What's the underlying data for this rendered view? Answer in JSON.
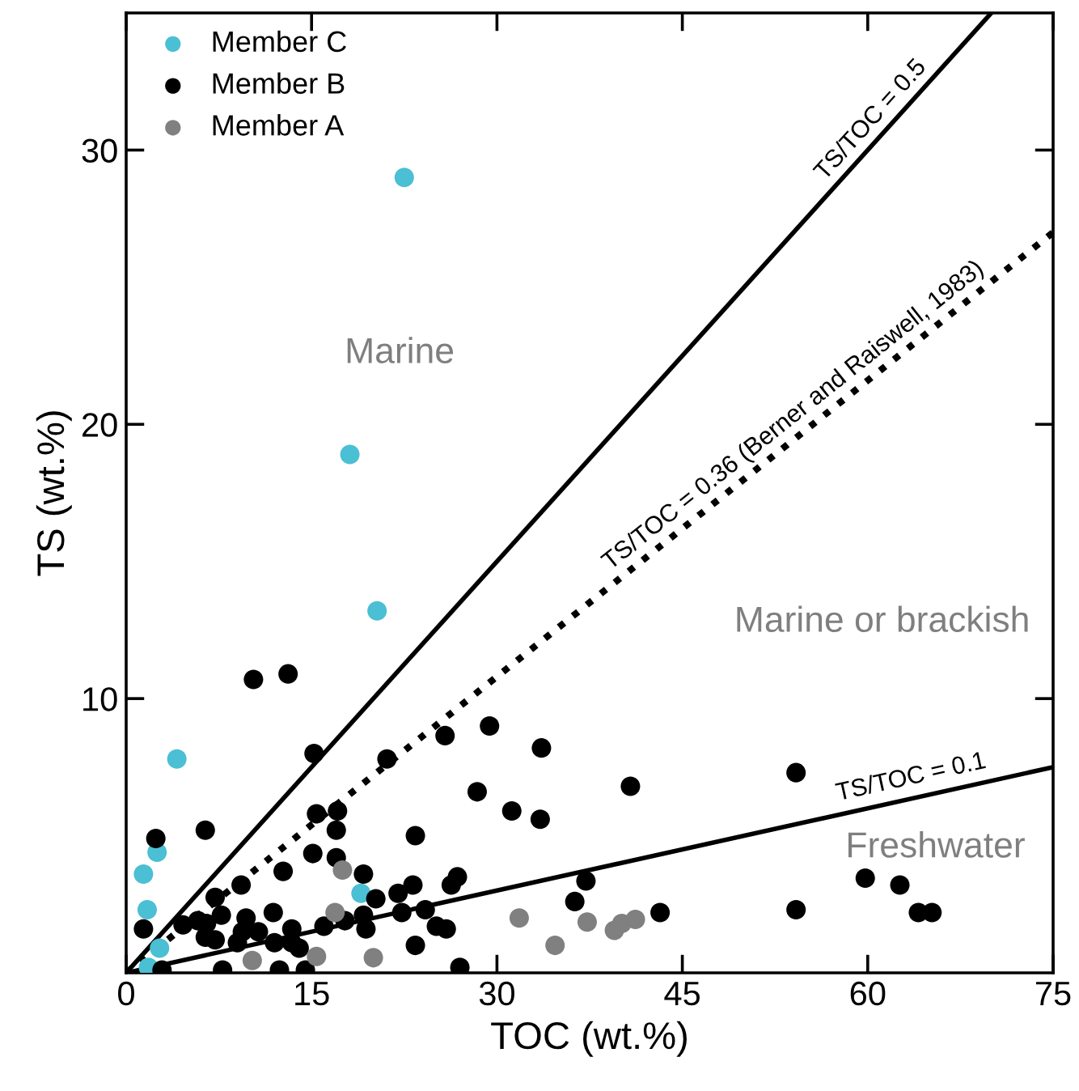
{
  "chart_data": {
    "type": "scatter",
    "xlabel": "TOC (wt.%)",
    "ylabel": "TS (wt.%)",
    "xlim": [
      0,
      75
    ],
    "ylim": [
      0,
      35
    ],
    "xticks": [
      0,
      15,
      30,
      45,
      60,
      75
    ],
    "yticks": [
      10,
      20,
      30
    ],
    "grid": false,
    "legend": "top left",
    "series": [
      {
        "name": "Member C",
        "color": "#4bbfd3",
        "marker": "circle",
        "x": [
          22.5,
          18.1,
          20.3,
          4.1,
          2.5,
          1.4,
          1.7,
          19.0,
          1.8,
          2.7
        ],
        "values": [
          29.0,
          18.9,
          13.2,
          7.8,
          4.4,
          3.6,
          2.3,
          2.9,
          0.2,
          0.9
        ]
      },
      {
        "name": "Member B",
        "color": "#000000",
        "marker": "circle",
        "x": [
          10.3,
          13.1,
          15.2,
          21.1,
          2.4,
          6.4,
          15.4,
          17.1,
          17.0,
          23.4,
          15.1,
          17.0,
          12.7,
          9.3,
          19.2,
          22.0,
          23.2,
          20.2,
          7.2,
          1.4,
          4.6,
          5.8,
          6.5,
          7.7,
          6.4,
          7.2,
          9.7,
          10.7,
          9.4,
          11.9,
          13.4,
          13.4,
          12.0,
          16.0,
          17.7,
          19.2,
          19.4,
          22.3,
          24.2,
          25.1,
          23.4,
          2.9,
          7.8,
          12.4,
          14.5,
          14.0,
          9.0,
          25.8,
          29.4,
          33.6,
          28.4,
          31.2,
          33.5,
          40.8,
          26.8,
          26.3,
          25.9,
          37.2,
          36.3,
          43.2,
          27.0,
          54.2,
          54.2,
          59.8,
          62.6,
          64.1,
          65.2
        ],
        "values": [
          10.7,
          10.9,
          8.0,
          7.8,
          4.9,
          5.2,
          5.8,
          5.9,
          5.2,
          5.0,
          4.35,
          4.2,
          3.7,
          3.2,
          3.6,
          2.9,
          3.2,
          2.7,
          2.75,
          1.6,
          1.75,
          1.9,
          1.8,
          2.1,
          1.3,
          1.2,
          2.0,
          1.5,
          1.5,
          2.2,
          1.6,
          1.1,
          1.1,
          1.7,
          1.9,
          2.1,
          1.6,
          2.2,
          2.3,
          1.7,
          1.0,
          0.1,
          0.1,
          0.1,
          0.1,
          0.9,
          1.1,
          8.65,
          9.0,
          8.2,
          6.6,
          5.9,
          5.6,
          6.8,
          3.5,
          3.2,
          1.6,
          3.35,
          2.6,
          2.2,
          0.2,
          7.3,
          2.3,
          3.45,
          3.2,
          2.2,
          2.2
        ]
      },
      {
        "name": "Member A",
        "color": "#808080",
        "marker": "circle",
        "x": [
          17.5,
          16.9,
          10.2,
          15.4,
          20.0,
          31.8,
          34.7,
          37.3,
          39.5,
          40.1,
          41.2
        ],
        "values": [
          3.75,
          2.2,
          0.45,
          0.6,
          0.55,
          2.0,
          1.0,
          1.85,
          1.55,
          1.8,
          1.95
        ]
      },
      {
        "name": "TS/TOC = 0.5",
        "type": "line",
        "color": "#000000",
        "line_style": "solid",
        "marker": "none",
        "x": [
          0,
          70
        ],
        "values": [
          0,
          35
        ]
      },
      {
        "name": "TS/TOC = 0.36 (Berner and Raiswell, 1983)",
        "type": "line",
        "color": "#000000",
        "line_style": "dotted",
        "marker": "none",
        "x": [
          0,
          75
        ],
        "values": [
          0,
          27
        ]
      },
      {
        "name": "TS/TOC = 0.1",
        "type": "line",
        "color": "#000000",
        "line_style": "solid",
        "marker": "none",
        "x": [
          0,
          75
        ],
        "values": [
          0,
          7.5
        ]
      }
    ],
    "annotations": [
      "Marine",
      "Marine or brackish",
      "Freshwater"
    ]
  }
}
